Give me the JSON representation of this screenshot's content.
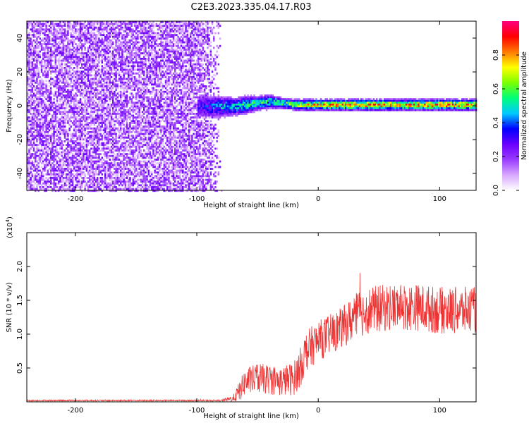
{
  "figure": {
    "title": "C2E3.2023.335.04.17.R03"
  },
  "colorbar": {
    "label": "Normalized spectral amplitude",
    "ticks": [
      "0.0",
      "0.2",
      "0.4",
      "0.6",
      "0.8"
    ],
    "tick_values": [
      0.0,
      0.2,
      0.4,
      0.6,
      0.8
    ],
    "range": [
      0,
      1
    ],
    "colors": [
      "#ffffff",
      "#d8a8ff",
      "#9a3cff",
      "#6a00ff",
      "#0000ff",
      "#00c8ff",
      "#00ff7a",
      "#7dff00",
      "#ffff00",
      "#ff7a00",
      "#ff0000",
      "#ff0080"
    ]
  },
  "chart_data": [
    {
      "type": "heatmap",
      "xlabel": "Height of straight line (km)",
      "ylabel": "Frequency (Hz)",
      "xlim": [
        -240,
        130
      ],
      "ylim": [
        -50,
        50
      ],
      "xticks": [
        -200,
        -100,
        0,
        100
      ],
      "yticks": [
        -40,
        -20,
        0,
        20,
        40
      ],
      "xtick_labels": [
        "-200",
        "-100",
        "0",
        "100"
      ],
      "ytick_labels": [
        "-40",
        "-20",
        "0",
        "20",
        "40"
      ],
      "noise_region_x": [
        -240,
        -80
      ],
      "signal_track": {
        "x": [
          -100,
          -90,
          -80,
          -70,
          -60,
          -50,
          -40,
          -30,
          -20,
          -10,
          0,
          20,
          40,
          60,
          80,
          100,
          120,
          130
        ],
        "center_freq": [
          0,
          0,
          0,
          0,
          1,
          2,
          3,
          2,
          1,
          1,
          1,
          1,
          1,
          1,
          1,
          1,
          1,
          1
        ],
        "half_width": [
          8,
          7,
          6,
          5,
          5,
          4,
          4,
          3,
          3,
          3,
          3,
          3,
          3,
          3,
          3,
          3,
          3,
          3
        ],
        "peak_amplitude": [
          0.3,
          0.4,
          0.5,
          0.55,
          0.6,
          0.6,
          0.6,
          0.65,
          0.75,
          0.8,
          0.85,
          0.9,
          0.9,
          0.9,
          0.9,
          0.9,
          0.9,
          0.9
        ]
      }
    },
    {
      "type": "line",
      "xlabel": "Height of straight line (km)",
      "ylabel": "SNR (10 * v/v)",
      "y_multiplier": "(x10",
      "y_multiplier_exp": "4",
      "y_multiplier_close": ")",
      "xlim": [
        -240,
        130
      ],
      "ylim": [
        0,
        2.5
      ],
      "xticks": [
        -200,
        -100,
        0,
        100
      ],
      "yticks": [
        0.5,
        1.0,
        1.5,
        2.0
      ],
      "xtick_labels": [
        "-200",
        "-100",
        "0",
        "100"
      ],
      "ytick_labels": [
        "0.5",
        "1.0",
        "1.5",
        "2.0"
      ],
      "color": "#ee3333",
      "envelope": {
        "x": [
          -240,
          -80,
          -70,
          -65,
          -60,
          -50,
          -40,
          -30,
          -20,
          -15,
          -10,
          0,
          10,
          20,
          30,
          40,
          60,
          80,
          100,
          120,
          130
        ],
        "mean": [
          0.02,
          0.02,
          0.05,
          0.15,
          0.3,
          0.35,
          0.33,
          0.3,
          0.35,
          0.5,
          0.75,
          0.9,
          1.0,
          1.1,
          1.25,
          1.35,
          1.4,
          1.4,
          1.35,
          1.35,
          1.35
        ],
        "spread": [
          0.01,
          0.01,
          0.05,
          0.15,
          0.2,
          0.22,
          0.22,
          0.22,
          0.25,
          0.3,
          0.3,
          0.3,
          0.3,
          0.3,
          0.35,
          0.35,
          0.35,
          0.35,
          0.35,
          0.35,
          0.35
        ]
      }
    }
  ]
}
